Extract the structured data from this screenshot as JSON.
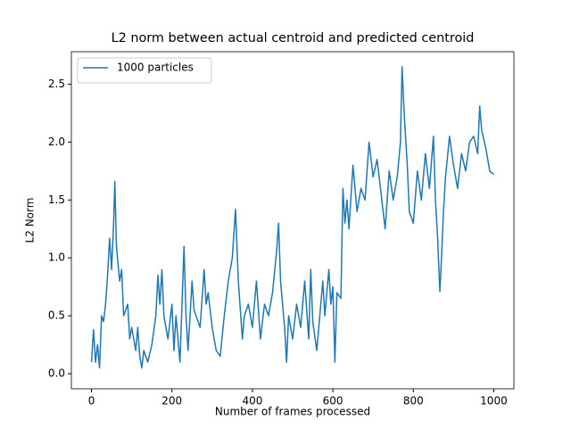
{
  "chart_data": {
    "type": "line",
    "title": "L2 norm between actual centroid and predicted centroid",
    "xlabel": "Number of frames processed",
    "ylabel": "L2 Norm",
    "x": [
      0,
      5,
      10,
      15,
      20,
      25,
      30,
      35,
      40,
      45,
      50,
      55,
      58,
      62,
      70,
      75,
      80,
      90,
      95,
      100,
      110,
      115,
      120,
      125,
      130,
      140,
      150,
      160,
      165,
      170,
      175,
      180,
      190,
      200,
      205,
      210,
      215,
      220,
      230,
      235,
      240,
      250,
      255,
      260,
      270,
      280,
      285,
      290,
      300,
      310,
      320,
      330,
      340,
      350,
      358,
      365,
      375,
      380,
      390,
      400,
      410,
      420,
      430,
      440,
      450,
      460,
      465,
      470,
      480,
      485,
      490,
      500,
      510,
      520,
      530,
      540,
      545,
      550,
      560,
      570,
      575,
      580,
      590,
      595,
      600,
      605,
      610,
      620,
      625,
      630,
      635,
      640,
      650,
      660,
      670,
      680,
      690,
      700,
      710,
      720,
      730,
      740,
      750,
      760,
      768,
      772,
      778,
      785,
      790,
      800,
      810,
      820,
      830,
      840,
      850,
      855,
      860,
      866,
      870,
      875,
      880,
      890,
      900,
      910,
      920,
      930,
      940,
      950,
      960,
      965,
      970,
      980,
      990,
      1000
    ],
    "series": [
      {
        "name": "1000 particles",
        "color": "#1f77b4",
        "values": [
          0.1,
          0.38,
          0.1,
          0.25,
          0.05,
          0.5,
          0.45,
          0.6,
          0.85,
          1.17,
          0.9,
          1.3,
          1.66,
          1.1,
          0.8,
          0.9,
          0.5,
          0.6,
          0.3,
          0.4,
          0.2,
          0.4,
          0.15,
          0.05,
          0.2,
          0.1,
          0.25,
          0.5,
          0.85,
          0.6,
          0.9,
          0.5,
          0.3,
          0.6,
          0.2,
          0.5,
          0.3,
          0.1,
          1.1,
          0.5,
          0.2,
          0.8,
          0.55,
          0.5,
          0.4,
          0.9,
          0.6,
          0.7,
          0.4,
          0.2,
          0.15,
          0.5,
          0.8,
          1.0,
          1.42,
          0.8,
          0.3,
          0.5,
          0.6,
          0.4,
          0.8,
          0.3,
          0.6,
          0.5,
          0.7,
          1.05,
          1.3,
          0.8,
          0.4,
          0.1,
          0.5,
          0.3,
          0.6,
          0.4,
          0.8,
          0.3,
          0.9,
          0.45,
          0.2,
          0.6,
          0.8,
          0.5,
          0.9,
          0.6,
          0.75,
          0.1,
          0.7,
          0.65,
          1.6,
          1.3,
          1.5,
          1.25,
          1.8,
          1.4,
          1.6,
          1.5,
          2.0,
          1.7,
          1.85,
          1.55,
          1.25,
          1.75,
          1.5,
          1.7,
          2.0,
          2.65,
          2.2,
          1.8,
          1.4,
          1.3,
          1.75,
          1.5,
          1.9,
          1.6,
          2.05,
          1.5,
          1.2,
          0.71,
          1.0,
          1.4,
          1.7,
          2.05,
          1.8,
          1.6,
          1.9,
          1.75,
          2.0,
          2.05,
          1.9,
          2.31,
          2.1,
          1.95,
          1.75,
          1.72
        ]
      }
    ],
    "xlim": [
      -50,
      1050
    ],
    "ylim": [
      -0.13,
      2.78
    ],
    "xticks": [
      0,
      200,
      400,
      600,
      800,
      1000
    ],
    "yticks": [
      {
        "value": 0,
        "label": "0.0"
      },
      {
        "value": 0.5,
        "label": "0.5"
      },
      {
        "value": 1,
        "label": "1.0"
      },
      {
        "value": 1.5,
        "label": "1.5"
      },
      {
        "value": 2,
        "label": "2.0"
      },
      {
        "value": 2.5,
        "label": "2.5"
      }
    ],
    "legend": "upper left"
  }
}
